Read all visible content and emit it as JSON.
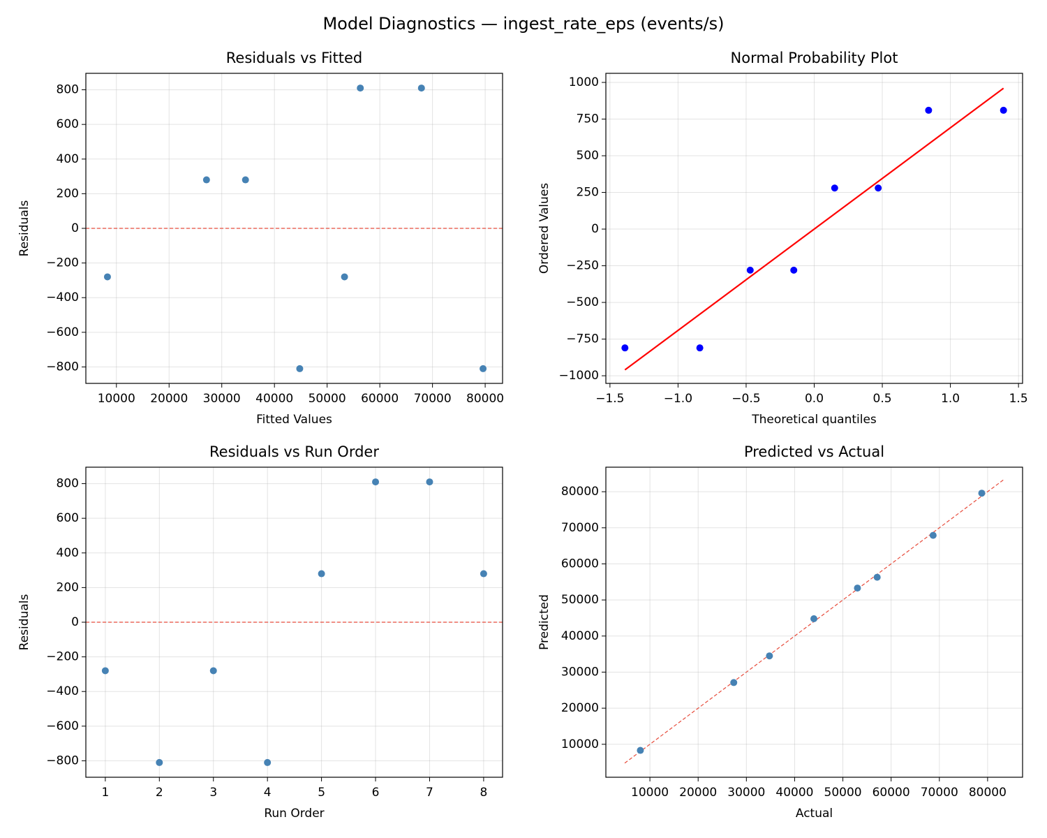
{
  "title": "Model Diagnostics — ingest_rate_eps (events/s)",
  "chart_data": [
    {
      "type": "scatter",
      "title": "Residuals vs Fitted",
      "xlabel": "Fitted Values",
      "ylabel": "Residuals",
      "xlim": [
        4200,
        83300
      ],
      "ylim": [
        -895,
        895
      ],
      "xticks": [
        10000,
        20000,
        30000,
        40000,
        50000,
        60000,
        70000,
        80000
      ],
      "yticks": [
        {
          "value": -800,
          "label": "−800"
        },
        {
          "value": -600,
          "label": "−600"
        },
        {
          "value": -400,
          "label": "−400"
        },
        {
          "value": -200,
          "label": "−200"
        },
        0,
        200,
        400,
        600,
        800
      ],
      "grid": true,
      "hline": {
        "value": 0,
        "color": "#e74c3c"
      },
      "series": [
        {
          "mode": "markers",
          "color": "#4682b4",
          "x": [
            8300,
            27100,
            34500,
            44800,
            53300,
            56300,
            67900,
            79600
          ],
          "values": [
            -280,
            280,
            280,
            -810,
            -280,
            810,
            810,
            -810
          ]
        }
      ]
    },
    {
      "type": "scatter",
      "title": "Normal Probability Plot",
      "xlabel": "Theoretical quantiles",
      "ylabel": "Ordered Values",
      "xlim": [
        -1.53,
        1.53
      ],
      "ylim": [
        -1052,
        1062
      ],
      "xticks": [
        {
          "value": -1.5,
          "label": "−1.5"
        },
        {
          "value": -1,
          "label": "−1.0"
        },
        {
          "value": -0.5,
          "label": "−0.5"
        },
        {
          "value": 0,
          "label": "0.0"
        },
        0.5,
        {
          "value": 1,
          "label": "1.0"
        },
        1.5
      ],
      "yticks": [
        {
          "value": -1000,
          "label": "−1000"
        },
        {
          "value": -750,
          "label": "−750"
        },
        {
          "value": -500,
          "label": "−500"
        },
        {
          "value": -250,
          "label": "−250"
        },
        0,
        250,
        500,
        750,
        1000
      ],
      "grid": true,
      "series": [
        {
          "mode": "markers",
          "color": "#0000ff",
          "x": [
            -1.39,
            -0.84,
            -0.47,
            -0.15,
            0.15,
            0.47,
            0.84,
            1.39
          ],
          "values": [
            -810,
            -810,
            -280,
            -280,
            280,
            280,
            810,
            810
          ]
        },
        {
          "mode": "line",
          "color": "#ff0000",
          "dash": false,
          "x": [
            -1.39,
            1.39
          ],
          "values": [
            -960,
            960
          ]
        }
      ]
    },
    {
      "type": "scatter",
      "title": "Residuals vs Run Order",
      "xlabel": "Run Order",
      "ylabel": "Residuals",
      "xlim": [
        0.64,
        8.35
      ],
      "ylim": [
        -895,
        895
      ],
      "xticks": [
        1,
        2,
        3,
        4,
        5,
        6,
        7,
        8
      ],
      "yticks": [
        {
          "value": -800,
          "label": "−800"
        },
        {
          "value": -600,
          "label": "−600"
        },
        {
          "value": -400,
          "label": "−400"
        },
        {
          "value": -200,
          "label": "−200"
        },
        0,
        200,
        400,
        600,
        800
      ],
      "grid": true,
      "hline": {
        "value": 0,
        "color": "#e74c3c"
      },
      "series": [
        {
          "mode": "markers",
          "color": "#4682b4",
          "x": [
            1,
            2,
            3,
            4,
            5,
            6,
            7,
            8
          ],
          "values": [
            -280,
            -810,
            -280,
            -810,
            280,
            810,
            810,
            280
          ]
        }
      ]
    },
    {
      "type": "scatter",
      "title": "Predicted vs Actual",
      "xlabel": "Actual",
      "ylabel": "Predicted",
      "xlim": [
        870,
        87250
      ],
      "ylim": [
        860,
        86800
      ],
      "xticks": [
        10000,
        20000,
        30000,
        40000,
        50000,
        60000,
        70000,
        80000
      ],
      "yticks": [
        10000,
        20000,
        30000,
        40000,
        50000,
        60000,
        70000,
        80000
      ],
      "grid": true,
      "series": [
        {
          "mode": "line",
          "color": "#e74c3c",
          "dash": true,
          "x": [
            4780,
            83330
          ],
          "values": [
            4780,
            83330
          ]
        },
        {
          "mode": "markers",
          "color": "#4682b4",
          "x": [
            8020,
            27380,
            34780,
            43990,
            53020,
            57110,
            68710,
            78790
          ],
          "values": [
            8300,
            27100,
            34500,
            44800,
            53300,
            56300,
            67900,
            79600
          ]
        }
      ]
    }
  ]
}
